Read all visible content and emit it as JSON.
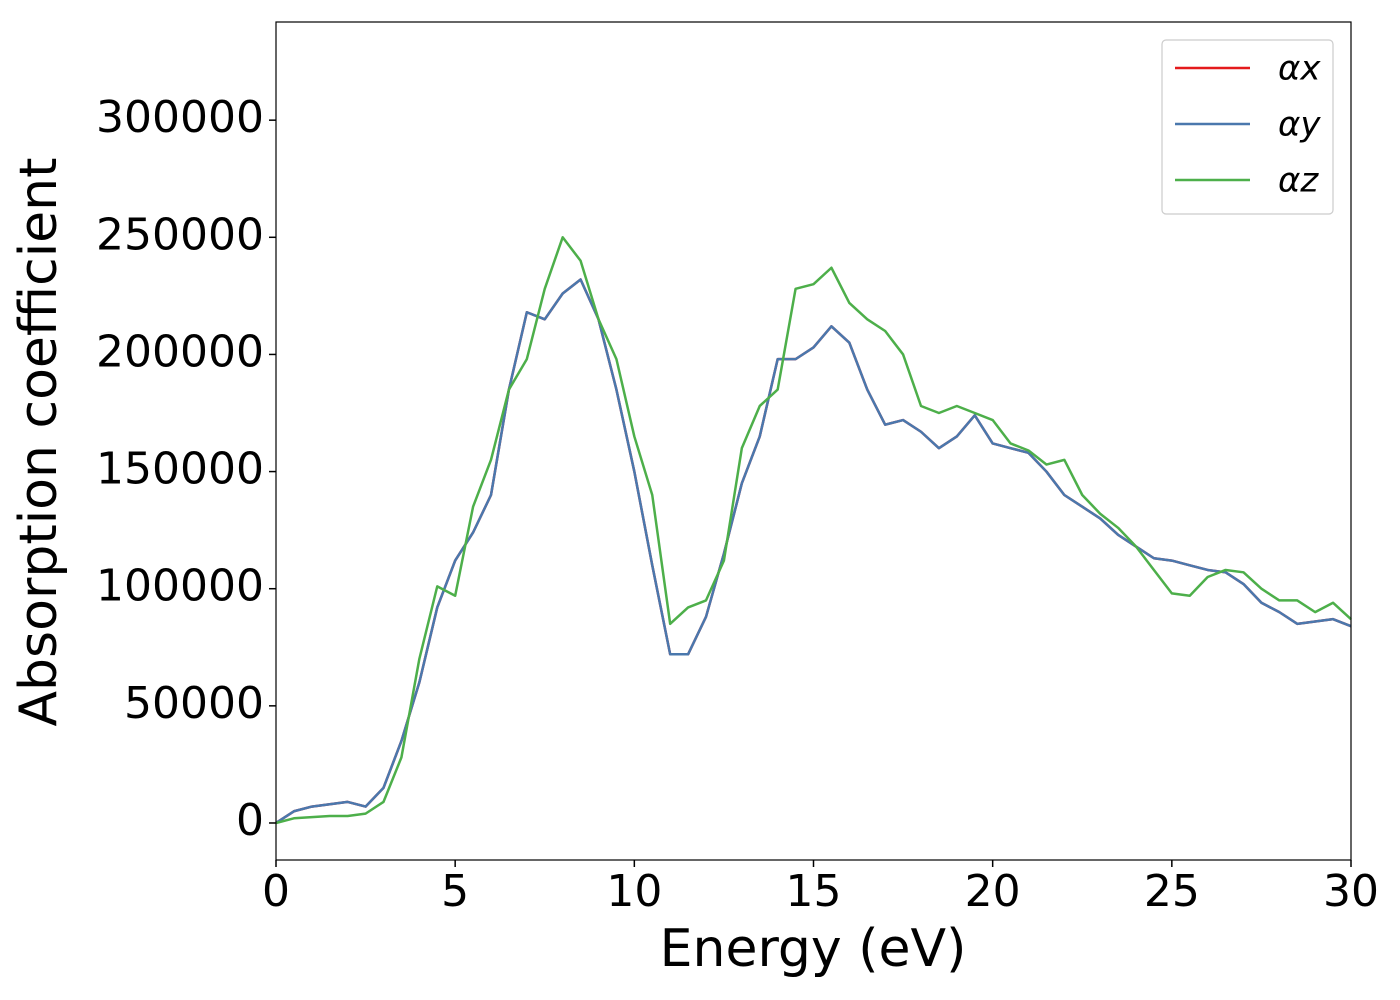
{
  "chart_data": {
    "type": "line",
    "xlabel": "Energy (eV)",
    "ylabel": "Absorption coefficient",
    "x": [
      0,
      0.5,
      1,
      1.5,
      2,
      2.5,
      3,
      3.5,
      4,
      4.5,
      5,
      5.5,
      6,
      6.5,
      7,
      7.5,
      8,
      8.5,
      9,
      9.5,
      10,
      10.5,
      11,
      11.5,
      12,
      12.5,
      13,
      13.5,
      14,
      14.5,
      15,
      15.5,
      16,
      16.5,
      17,
      17.5,
      18,
      18.5,
      19,
      19.5,
      20,
      20.5,
      21,
      21.5,
      22,
      22.5,
      23,
      23.5,
      24,
      24.5,
      25,
      25.5,
      26,
      26.5,
      27,
      27.5,
      28,
      28.5,
      29,
      29.5,
      30
    ],
    "series": [
      {
        "name": "αx",
        "color": "#e41a1c",
        "values": [
          0,
          5000,
          7000,
          8000,
          9000,
          7000,
          15000,
          35000,
          60000,
          92000,
          112000,
          124000,
          140000,
          185000,
          218000,
          215000,
          226000,
          232000,
          215000,
          185000,
          150000,
          110000,
          72000,
          72000,
          88000,
          115000,
          145000,
          165000,
          198000,
          198000,
          203000,
          212000,
          205000,
          185000,
          170000,
          172000,
          167000,
          160000,
          165000,
          174000,
          162000,
          160000,
          158000,
          150000,
          140000,
          135000,
          130000,
          123000,
          118000,
          113000,
          112000,
          110000,
          108000,
          107000,
          102000,
          94000,
          90000,
          85000,
          86000,
          87000,
          84000
        ]
      },
      {
        "name": "αy",
        "color": "#4a78ad",
        "values": [
          0,
          5000,
          7000,
          8000,
          9000,
          7000,
          15000,
          35000,
          60000,
          92000,
          112000,
          124000,
          140000,
          185000,
          218000,
          215000,
          226000,
          232000,
          215000,
          185000,
          150000,
          110000,
          72000,
          72000,
          88000,
          115000,
          145000,
          165000,
          198000,
          198000,
          203000,
          212000,
          205000,
          185000,
          170000,
          172000,
          167000,
          160000,
          165000,
          174000,
          162000,
          160000,
          158000,
          150000,
          140000,
          135000,
          130000,
          123000,
          118000,
          113000,
          112000,
          110000,
          108000,
          107000,
          102000,
          94000,
          90000,
          85000,
          86000,
          87000,
          84000
        ]
      },
      {
        "name": "αz",
        "color": "#4daf4a",
        "values": [
          0,
          2000,
          2500,
          3000,
          3000,
          4000,
          9000,
          28000,
          70000,
          101000,
          97000,
          135000,
          155000,
          185000,
          198000,
          228000,
          250000,
          240000,
          215000,
          198000,
          165000,
          140000,
          85000,
          92000,
          95000,
          112000,
          160000,
          178000,
          185000,
          228000,
          230000,
          237000,
          222000,
          215000,
          210000,
          200000,
          178000,
          175000,
          178000,
          175000,
          172000,
          162000,
          159000,
          153000,
          155000,
          140000,
          132000,
          126000,
          118000,
          108000,
          98000,
          97000,
          105000,
          108000,
          107000,
          100000,
          95000,
          95000,
          90000,
          94000,
          87000
        ]
      }
    ],
    "xlim": [
      0,
      30
    ],
    "xticks": [
      0,
      5,
      10,
      15,
      20,
      25,
      30
    ],
    "ylim": [
      -15800,
      341900
    ],
    "yticks": [
      0,
      50000,
      100000,
      150000,
      200000,
      250000,
      300000
    ],
    "grid": false,
    "legend": "upper right"
  }
}
